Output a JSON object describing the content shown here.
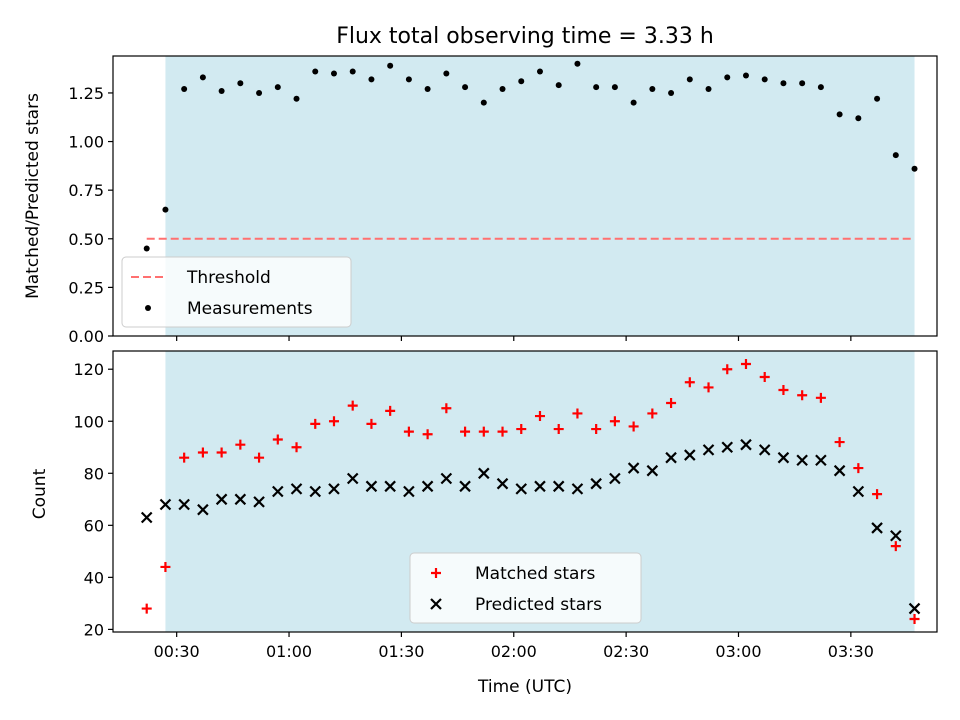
{
  "chart_data": {
    "title": "Flux total observing time = 3.33 h",
    "xlabel": "Time (UTC)",
    "x_axis": {
      "type": "time",
      "range": [
        "00:13",
        "03:53"
      ],
      "ticks": [
        "00:30",
        "01:00",
        "01:30",
        "02:00",
        "02:30",
        "03:00",
        "03:30"
      ]
    },
    "shaded_interval": [
      "00:27",
      "03:47"
    ],
    "shaded_color": "#add8e6",
    "panels": [
      {
        "type": "scatter",
        "ylabel": "Matched/Predicted stars",
        "ylim": [
          0,
          1.44
        ],
        "yticks": [
          "0.00",
          "0.25",
          "0.50",
          "0.75",
          "1.00",
          "1.25"
        ],
        "legend_position": "lower-left",
        "threshold": {
          "name": "Threshold",
          "value": 0.5,
          "x_range": [
            "00:22",
            "03:47"
          ],
          "color": "#ff7070",
          "style": "dashed"
        },
        "series": [
          {
            "name": "Measurements",
            "marker": "dot",
            "color": "#000000",
            "x": [
              "00:22",
              "00:27",
              "00:32",
              "00:37",
              "00:42",
              "00:47",
              "00:52",
              "00:57",
              "01:02",
              "01:07",
              "01:12",
              "01:17",
              "01:22",
              "01:27",
              "01:32",
              "01:37",
              "01:42",
              "01:47",
              "01:52",
              "01:57",
              "02:02",
              "02:07",
              "02:12",
              "02:17",
              "02:22",
              "02:27",
              "02:32",
              "02:37",
              "02:42",
              "02:47",
              "02:52",
              "02:57",
              "03:02",
              "03:07",
              "03:12",
              "03:17",
              "03:22",
              "03:27",
              "03:32",
              "03:37",
              "03:42",
              "03:47"
            ],
            "y": [
              0.45,
              0.65,
              1.27,
              1.33,
              1.26,
              1.3,
              1.25,
              1.28,
              1.22,
              1.36,
              1.35,
              1.36,
              1.32,
              1.39,
              1.32,
              1.27,
              1.35,
              1.28,
              1.2,
              1.27,
              1.31,
              1.36,
              1.29,
              1.4,
              1.28,
              1.28,
              1.2,
              1.27,
              1.25,
              1.32,
              1.27,
              1.33,
              1.34,
              1.32,
              1.3,
              1.3,
              1.28,
              1.14,
              1.12,
              1.22,
              0.93,
              0.86
            ]
          }
        ]
      },
      {
        "type": "scatter",
        "ylabel": "Count",
        "ylim": [
          19,
          127
        ],
        "yticks": [
          "20",
          "40",
          "60",
          "80",
          "100",
          "120"
        ],
        "legend_position": "lower-center",
        "series": [
          {
            "name": "Matched stars",
            "marker": "plus",
            "color": "#ff0000",
            "x": [
              "00:22",
              "00:27",
              "00:32",
              "00:37",
              "00:42",
              "00:47",
              "00:52",
              "00:57",
              "01:02",
              "01:07",
              "01:12",
              "01:17",
              "01:22",
              "01:27",
              "01:32",
              "01:37",
              "01:42",
              "01:47",
              "01:52",
              "01:57",
              "02:02",
              "02:07",
              "02:12",
              "02:17",
              "02:22",
              "02:27",
              "02:32",
              "02:37",
              "02:42",
              "02:47",
              "02:52",
              "02:57",
              "03:02",
              "03:07",
              "03:12",
              "03:17",
              "03:22",
              "03:27",
              "03:32",
              "03:37",
              "03:42",
              "03:47"
            ],
            "y": [
              28,
              44,
              86,
              88,
              88,
              91,
              86,
              93,
              90,
              99,
              100,
              106,
              99,
              104,
              96,
              95,
              105,
              96,
              96,
              96,
              97,
              102,
              97,
              103,
              97,
              100,
              98,
              103,
              107,
              115,
              113,
              120,
              122,
              117,
              112,
              110,
              109,
              92,
              82,
              72,
              52,
              24
            ]
          },
          {
            "name": "Predicted stars",
            "marker": "x",
            "color": "#000000",
            "x": [
              "00:22",
              "00:27",
              "00:32",
              "00:37",
              "00:42",
              "00:47",
              "00:52",
              "00:57",
              "01:02",
              "01:07",
              "01:12",
              "01:17",
              "01:22",
              "01:27",
              "01:32",
              "01:37",
              "01:42",
              "01:47",
              "01:52",
              "01:57",
              "02:02",
              "02:07",
              "02:12",
              "02:17",
              "02:22",
              "02:27",
              "02:32",
              "02:37",
              "02:42",
              "02:47",
              "02:52",
              "02:57",
              "03:02",
              "03:07",
              "03:12",
              "03:17",
              "03:22",
              "03:27",
              "03:32",
              "03:37",
              "03:42",
              "03:47"
            ],
            "y": [
              63,
              68,
              68,
              66,
              70,
              70,
              69,
              73,
              74,
              73,
              74,
              78,
              75,
              75,
              73,
              75,
              78,
              75,
              80,
              76,
              74,
              75,
              75,
              74,
              76,
              78,
              82,
              81,
              86,
              87,
              89,
              90,
              91,
              89,
              86,
              85,
              85,
              81,
              73,
              59,
              56,
              28
            ]
          }
        ]
      }
    ]
  }
}
